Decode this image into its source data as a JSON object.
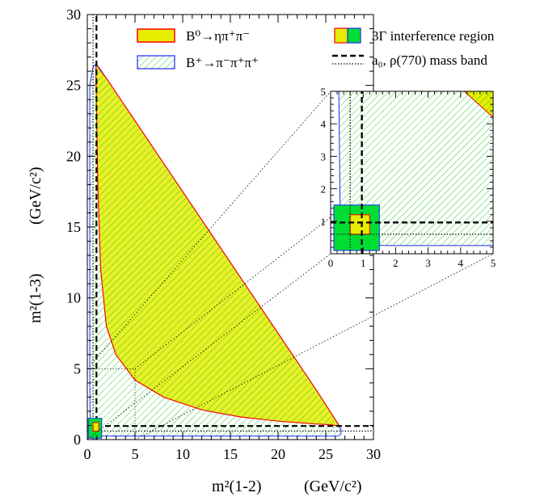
{
  "chart_data": {
    "type": "area",
    "xlabel": "m²(1-2)",
    "xlabel_unit": "(GeV/c²)",
    "ylabel": "m²(1-3)",
    "ylabel_unit": "(GeV/c²)",
    "xlim": [
      0,
      30
    ],
    "ylim": [
      0,
      30
    ],
    "xticks": [
      "0",
      "5",
      "10",
      "15",
      "20",
      "25",
      "30"
    ],
    "yticks": [
      "0",
      "5",
      "10",
      "15",
      "20",
      "25",
      "30"
    ],
    "legend_placement": "top",
    "legend": [
      {
        "label": "B⁰→ηπ⁺π⁻",
        "style": "yellow fill, red outline"
      },
      {
        "label": "B⁺→π⁻π⁺π⁺",
        "style": "green hatch, blue outline"
      },
      {
        "label": "3Γ interference region",
        "style": "yellow/green box"
      },
      {
        "label": "a₀, ρ(770) mass band",
        "style": "dashed / dotted lines"
      }
    ],
    "series": [
      {
        "name": "B⁰→ηπ⁺π⁻",
        "boundary": {
          "x": [
            0.9,
            0.95,
            1.2,
            2,
            3,
            5,
            8,
            12,
            16,
            20,
            24,
            26.4,
            26.4,
            25.5,
            24,
            20,
            16,
            12,
            8,
            5,
            3,
            2,
            1.4,
            1.1,
            0.95
          ],
          "y": [
            26.4,
            26.5,
            26.2,
            25.5,
            24.5,
            22.5,
            19.5,
            15.5,
            11.5,
            7.5,
            3.5,
            1.0,
            0.95,
            1.05,
            1.1,
            1.3,
            1.6,
            2.1,
            3.0,
            4.2,
            6.0,
            8.0,
            12.0,
            18.0,
            24.0
          ]
        }
      },
      {
        "name": "B⁺→π⁻π⁺π⁺",
        "boundary": {
          "x": [
            0.25,
            0.6,
            0.9,
            1.0,
            1.5,
            3,
            5,
            8,
            12,
            16,
            20,
            24,
            26.6,
            26.6,
            26.3,
            25.0,
            20,
            15,
            10,
            5,
            2,
            0.9,
            0.5,
            0.3,
            0.25,
            0.25
          ],
          "y": [
            25.0,
            26.3,
            26.5,
            26.45,
            26.0,
            24.5,
            22.5,
            19.5,
            15.5,
            11.5,
            7.5,
            3.5,
            0.7,
            0.4,
            0.25,
            0.24,
            0.25,
            0.25,
            0.25,
            0.25,
            0.25,
            0.26,
            0.3,
            0.6,
            5.0,
            15.0
          ]
        }
      }
    ],
    "mass_bands": {
      "dashed_a0": 0.96,
      "dotted_rho": 0.6
    },
    "interference_region": {
      "outer": [
        0.1,
        1.5,
        0.1,
        1.5
      ],
      "inner": [
        0.6,
        1.2,
        0.6,
        1.2
      ]
    },
    "inset": {
      "xlim": [
        0,
        5
      ],
      "ylim": [
        0,
        5
      ],
      "xticks": [
        "0",
        "1",
        "2",
        "3",
        "4",
        "5"
      ],
      "yticks": [
        "0",
        "1",
        "2",
        "3",
        "4",
        "5"
      ]
    }
  },
  "colors": {
    "yellow_fill": "#e6ed00",
    "red_line": "#ff0000",
    "blue_line": "#1a2cff",
    "green_hatch": "#33cc33",
    "green_box": "#00dd33",
    "black": "#000000"
  }
}
